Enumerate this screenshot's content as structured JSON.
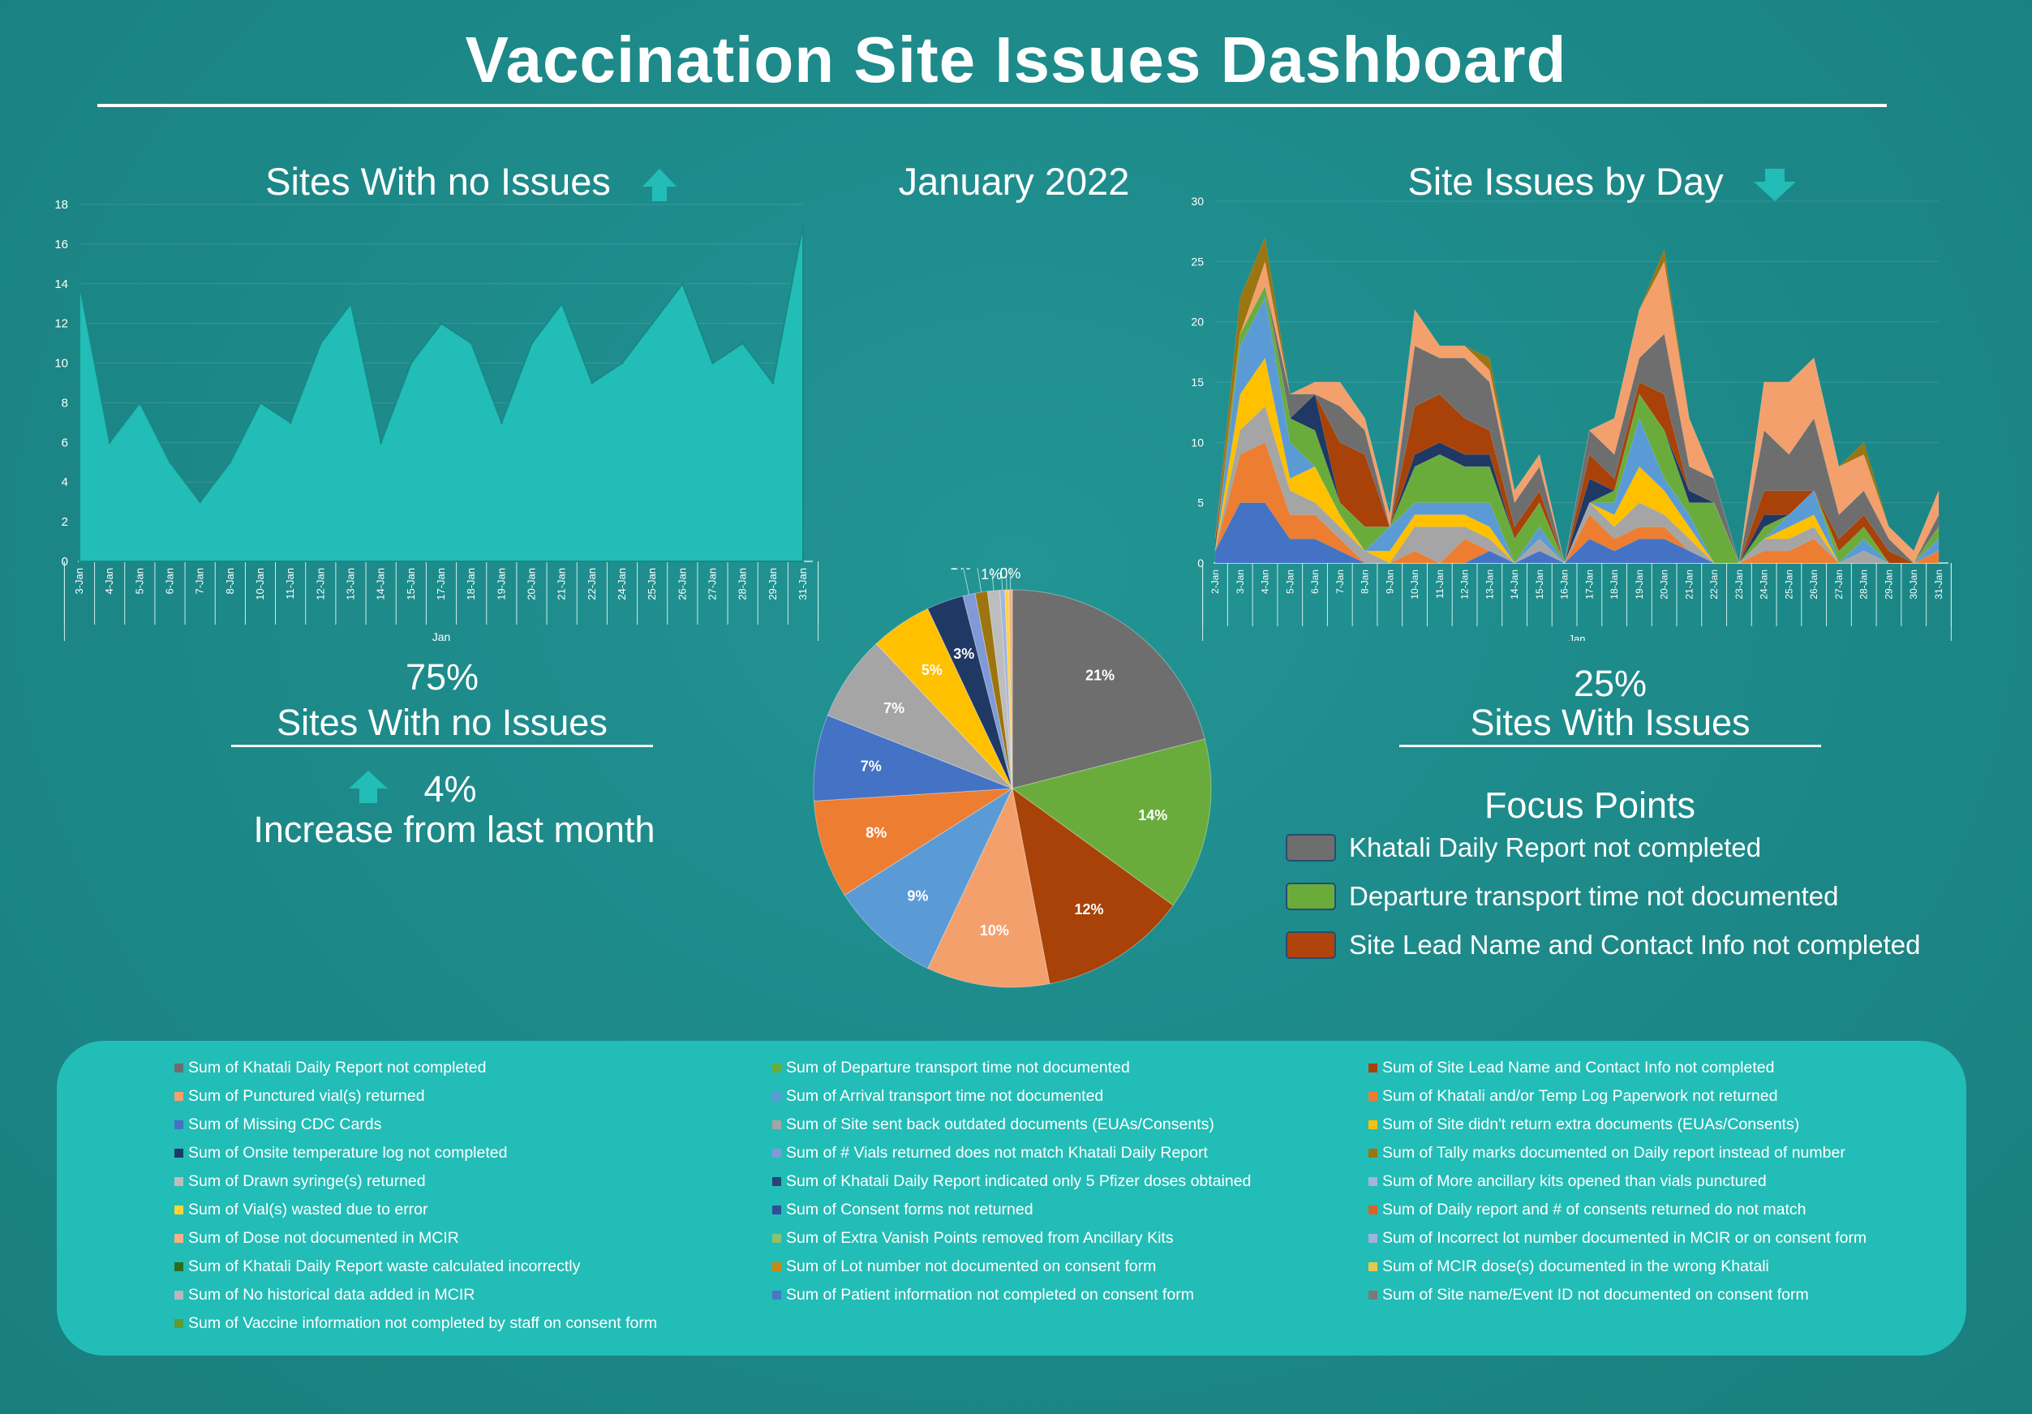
{
  "title": "Vaccination Site Issues Dashboard",
  "month_label": "January 2022",
  "left_chart_title": "Sites With no Issues",
  "right_chart_title": "Site Issues by Day",
  "kpi_no_issues": {
    "value": "75%",
    "label": "Sites With no Issues",
    "change_value": "4%",
    "change_label": "Increase from last month"
  },
  "kpi_issues": {
    "value": "25%",
    "label": "Sites With Issues"
  },
  "focus_points": {
    "title": "Focus Points",
    "items": [
      {
        "label": "Khatali Daily Report not completed",
        "color": "#6e6e6e"
      },
      {
        "label": "Departure transport time not documented",
        "color": "#6aac3c"
      },
      {
        "label": "Site Lead Name and Contact Info not completed",
        "color": "#b0440c"
      }
    ]
  },
  "colors": {
    "teal_fill": "#22bdb6",
    "bg": "#1f8c8c"
  },
  "legend": [
    {
      "label": "Sum of Khatali Daily Report not completed",
      "color": "#6e6e6e"
    },
    {
      "label": "Sum of Departure transport time not documented",
      "color": "#6aac3c"
    },
    {
      "label": "Sum of Site Lead Name and Contact Info not completed",
      "color": "#a84208"
    },
    {
      "label": "Sum of Punctured vial(s) returned",
      "color": "#f4a06c"
    },
    {
      "label": "Sum of Arrival transport time not documented",
      "color": "#5b9bd5"
    },
    {
      "label": "Sum of Khatali and/or Temp Log Paperwork not returned",
      "color": "#ed7d31"
    },
    {
      "label": "Sum of Missing CDC Cards",
      "color": "#4472c4"
    },
    {
      "label": "Sum of Site sent back outdated documents (EUAs/Consents)",
      "color": "#a5a5a5"
    },
    {
      "label": "Sum of Site didn't return extra documents (EUAs/Consents)",
      "color": "#ffc000"
    },
    {
      "label": "Sum of Onsite temperature log not completed",
      "color": "#203864"
    },
    {
      "label": "Sum of # Vials returned does not match Khatali Daily Report",
      "color": "#7f9ad6"
    },
    {
      "label": "Sum of Tally marks documented on Daily report instead of number",
      "color": "#9c7410"
    },
    {
      "label": "Sum of Drawn syringe(s) returned",
      "color": "#bdbdbd"
    },
    {
      "label": "Sum of Khatali Daily Report indicated only 5 Pfizer doses obtained",
      "color": "#264478"
    },
    {
      "label": "Sum of More ancillary kits opened than vials punctured",
      "color": "#a3b4dd"
    },
    {
      "label": "Sum of Vial(s) wasted due to error",
      "color": "#ffd33a"
    },
    {
      "label": "Sum of Consent forms not returned",
      "color": "#2f4f9c"
    },
    {
      "label": "Sum of Daily report and # of consents returned do not match",
      "color": "#d9622b"
    },
    {
      "label": "Sum of Dose not documented in MCIR",
      "color": "#f8b088"
    },
    {
      "label": "Sum of Extra Vanish Points removed from Ancillary Kits",
      "color": "#8dc16e"
    },
    {
      "label": "Sum of Incorrect lot number documented in MCIR or on consent form",
      "color": "#9fb3e0"
    },
    {
      "label": "Sum of Khatali Daily Report waste calculated incorrectly",
      "color": "#2e6b1f"
    },
    {
      "label": "Sum of Lot number not documented on consent form",
      "color": "#c08a16"
    },
    {
      "label": "Sum of MCIR dose(s) documented in the wrong Khatali",
      "color": "#e8c84a"
    },
    {
      "label": "Sum of No historical data added in MCIR",
      "color": "#b8b8b8"
    },
    {
      "label": "Sum of Patient information not completed on consent form",
      "color": "#4a76c8"
    },
    {
      "label": "Sum of Site name/Event ID not documented on consent form",
      "color": "#7a7a7a"
    },
    {
      "label": "Sum of Vaccine information not completed by staff on consent form",
      "color": "#5f9a32"
    }
  ],
  "chart_data": [
    {
      "type": "area",
      "title": "Sites With no Issues",
      "xlabel": "Jan",
      "categories": [
        "3-Jan",
        "4-Jan",
        "5-Jan",
        "6-Jan",
        "7-Jan",
        "8-Jan",
        "10-Jan",
        "11-Jan",
        "12-Jan",
        "13-Jan",
        "14-Jan",
        "15-Jan",
        "17-Jan",
        "18-Jan",
        "19-Jan",
        "20-Jan",
        "21-Jan",
        "22-Jan",
        "24-Jan",
        "25-Jan",
        "26-Jan",
        "27-Jan",
        "28-Jan",
        "29-Jan",
        "31-Jan"
      ],
      "values": [
        14,
        6,
        8,
        5,
        3,
        5,
        8,
        7,
        11,
        13,
        6,
        10,
        12,
        11,
        7,
        11,
        13,
        9,
        10,
        12,
        14,
        10,
        11,
        9,
        17
      ],
      "ylim": [
        0,
        18
      ],
      "yticks": [
        0,
        2,
        4,
        6,
        8,
        10,
        12,
        14,
        16,
        18
      ],
      "color": "#22bdb6"
    },
    {
      "type": "area",
      "stacked": true,
      "title": "Site Issues by Day",
      "xlabel": "Jan",
      "categories": [
        "2-Jan",
        "3-Jan",
        "4-Jan",
        "5-Jan",
        "6-Jan",
        "7-Jan",
        "8-Jan",
        "9-Jan",
        "10-Jan",
        "11-Jan",
        "12-Jan",
        "13-Jan",
        "14-Jan",
        "15-Jan",
        "16-Jan",
        "17-Jan",
        "18-Jan",
        "19-Jan",
        "20-Jan",
        "21-Jan",
        "22-Jan",
        "23-Jan",
        "24-Jan",
        "25-Jan",
        "26-Jan",
        "27-Jan",
        "28-Jan",
        "29-Jan",
        "30-Jan",
        "31-Jan"
      ],
      "ylim": [
        0,
        30
      ],
      "yticks": [
        0,
        5,
        10,
        15,
        20,
        25,
        30
      ],
      "series": [
        {
          "name": "Sum of Missing CDC Cards",
          "color": "#4472c4",
          "values": [
            1,
            5,
            5,
            2,
            2,
            1,
            0,
            0,
            0,
            0,
            0,
            1,
            0,
            1,
            0,
            2,
            1,
            2,
            2,
            1,
            0,
            0,
            0,
            0,
            0,
            0,
            0,
            0,
            0,
            0
          ]
        },
        {
          "name": "Sum of Khatali and/or Temp Log Paperwork not returned",
          "color": "#ed7d31",
          "values": [
            0,
            4,
            5,
            2,
            2,
            1,
            0,
            0,
            1,
            0,
            2,
            0,
            0,
            0,
            0,
            2,
            1,
            1,
            1,
            0,
            0,
            0,
            1,
            1,
            2,
            0,
            0,
            0,
            0,
            1
          ]
        },
        {
          "name": "Sum of Site sent back outdated documents (EUAs/Consents)",
          "color": "#a5a5a5",
          "values": [
            0,
            2,
            3,
            2,
            1,
            1,
            1,
            0,
            2,
            3,
            1,
            1,
            0,
            1,
            0,
            1,
            1,
            2,
            1,
            1,
            0,
            0,
            1,
            1,
            1,
            0,
            1,
            0,
            0,
            0
          ]
        },
        {
          "name": "Sum of Site didn't return extra documents (EUAs/Consents)",
          "color": "#ffc000",
          "values": [
            0,
            3,
            4,
            1,
            3,
            1,
            0,
            1,
            1,
            1,
            1,
            1,
            0,
            0,
            0,
            0,
            1,
            3,
            2,
            1,
            0,
            0,
            0,
            1,
            1,
            0,
            0,
            0,
            0,
            0
          ]
        },
        {
          "name": "Sum of Arrival transport time not documented",
          "color": "#5b9bd5",
          "values": [
            0,
            4,
            5,
            3,
            0,
            0,
            0,
            2,
            1,
            1,
            1,
            2,
            0,
            1,
            0,
            0,
            1,
            4,
            1,
            1,
            0,
            0,
            0,
            1,
            2,
            0,
            1,
            0,
            0,
            1
          ]
        },
        {
          "name": "Sum of Departure transport time not documented",
          "color": "#6aac3c",
          "values": [
            0,
            1,
            1,
            2,
            3,
            1,
            2,
            0,
            3,
            4,
            3,
            3,
            2,
            2,
            0,
            0,
            1,
            2,
            4,
            1,
            5,
            0,
            1,
            0,
            0,
            1,
            1,
            0,
            0,
            1
          ]
        },
        {
          "name": "Sum of Onsite temperature log not completed",
          "color": "#203864",
          "values": [
            0,
            0,
            0,
            0,
            3,
            0,
            0,
            0,
            1,
            1,
            1,
            1,
            0,
            0,
            0,
            2,
            0,
            0,
            0,
            1,
            0,
            0,
            1,
            0,
            0,
            0,
            0,
            0,
            0,
            0
          ]
        },
        {
          "name": "Sum of Site Lead Name and Contact Info not completed",
          "color": "#a84208",
          "values": [
            1,
            0,
            0,
            0,
            0,
            5,
            6,
            0,
            4,
            4,
            3,
            2,
            1,
            1,
            0,
            2,
            1,
            1,
            3,
            0,
            0,
            0,
            2,
            2,
            0,
            1,
            1,
            1,
            0,
            0
          ]
        },
        {
          "name": "Sum of Khatali Daily Report not completed",
          "color": "#6e6e6e",
          "values": [
            0,
            0,
            0,
            2,
            0,
            3,
            2,
            0,
            5,
            3,
            5,
            4,
            2,
            2,
            0,
            2,
            2,
            2,
            5,
            2,
            2,
            0,
            5,
            3,
            6,
            2,
            2,
            1,
            0,
            1
          ]
        },
        {
          "name": "Sum of Punctured vial(s) returned",
          "color": "#f4a06c",
          "values": [
            0,
            0,
            2,
            0,
            1,
            2,
            1,
            1,
            3,
            1,
            1,
            1,
            1,
            1,
            0,
            0,
            3,
            4,
            6,
            4,
            0,
            0,
            4,
            6,
            5,
            4,
            3,
            1,
            1,
            2
          ]
        },
        {
          "name": "Sum of Tally marks documented on Daily report instead of number",
          "color": "#9c7410",
          "values": [
            0,
            3,
            2,
            0,
            0,
            0,
            0,
            0,
            0,
            0,
            0,
            1,
            0,
            0,
            0,
            0,
            0,
            0,
            1,
            0,
            0,
            0,
            0,
            0,
            0,
            0,
            1,
            0,
            0,
            0
          ]
        }
      ]
    },
    {
      "type": "pie",
      "slices": [
        {
          "name": "Sum of Khatali Daily Report not completed",
          "value": 21,
          "label": "21%",
          "color": "#6e6e6e"
        },
        {
          "name": "Sum of Departure transport time not documented",
          "value": 14,
          "label": "14%",
          "color": "#6aac3c"
        },
        {
          "name": "Sum of Site Lead Name and Contact Info not completed",
          "value": 12,
          "label": "12%",
          "color": "#a84208"
        },
        {
          "name": "Sum of Punctured vial(s) returned",
          "value": 10,
          "label": "10%",
          "color": "#f4a06c"
        },
        {
          "name": "Sum of Arrival transport time not documented",
          "value": 9,
          "label": "9%",
          "color": "#5b9bd5"
        },
        {
          "name": "Sum of Khatali and/or Temp Log Paperwork not returned",
          "value": 8,
          "label": "8%",
          "color": "#ed7d31"
        },
        {
          "name": "Sum of Missing CDC Cards",
          "value": 7,
          "label": "7%",
          "color": "#4472c4"
        },
        {
          "name": "Sum of Site sent back outdated documents (EUAs/Consents)",
          "value": 7,
          "label": "7%",
          "color": "#a5a5a5"
        },
        {
          "name": "Sum of Site didn't return extra documents (EUAs/Consents)",
          "value": 5,
          "label": "5%",
          "color": "#ffc000"
        },
        {
          "name": "Sum of Onsite temperature log not completed",
          "value": 3,
          "label": "3%",
          "color": "#203864"
        },
        {
          "name": "Sum of # Vials returned does not match Khatali Daily Report",
          "value": 1,
          "label": "1%",
          "color": "#7f9ad6"
        },
        {
          "name": "Sum of Tally marks documented on Daily report instead of number",
          "value": 1,
          "label": "1%",
          "color": "#9c7410"
        },
        {
          "name": "Sum of Drawn syringe(s) returned",
          "value": 1,
          "label": "1%",
          "color": "#bdbdbd"
        },
        {
          "name": "Sum of More ancillary kits opened than vials punctured",
          "value": 0.4,
          "label": "0%",
          "color": "#a3b4dd"
        },
        {
          "name": "Sum of Vial(s) wasted due to error",
          "value": 0.3,
          "label": "0%",
          "color": "#ffd33a"
        },
        {
          "name": "Sum of Dose not documented in MCIR",
          "value": 0.3,
          "label": "0%",
          "color": "#f8b088"
        }
      ]
    }
  ]
}
